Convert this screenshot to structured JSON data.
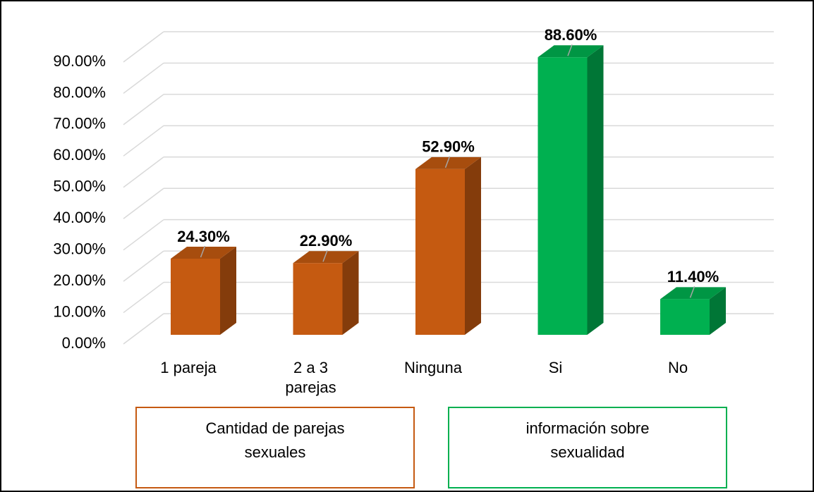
{
  "chart_data": {
    "type": "bar3d",
    "categories": [
      "1 pareja",
      "2 a 3 parejas",
      "Ninguna",
      "Si",
      "No"
    ],
    "values": [
      24.3,
      22.9,
      52.9,
      88.6,
      11.4
    ],
    "value_labels": [
      "24.30%",
      "22.90%",
      "52.90%",
      "88.60%",
      "11.40%"
    ],
    "colors": [
      "#c55a11",
      "#c55a11",
      "#c55a11",
      "#00b050",
      "#00b050"
    ],
    "ylim": [
      0,
      90
    ],
    "yticks": [
      {
        "value": 0,
        "label": "0.00%"
      },
      {
        "value": 10,
        "label": "10.00%"
      },
      {
        "value": 20,
        "label": "20.00%"
      },
      {
        "value": 30,
        "label": "30.00%"
      },
      {
        "value": 40,
        "label": "40.00%"
      },
      {
        "value": 50,
        "label": "50.00%"
      },
      {
        "value": 60,
        "label": "60.00%"
      },
      {
        "value": 70,
        "label": "70.00%"
      },
      {
        "value": 80,
        "label": "80.00%"
      },
      {
        "value": 90,
        "label": "90.00%"
      }
    ],
    "grid": true,
    "groups": [
      {
        "label": "Cantidad de parejas sexuales",
        "color": "#c55a11"
      },
      {
        "label": "información sobre sexualidad",
        "color": "#00b050"
      }
    ]
  }
}
